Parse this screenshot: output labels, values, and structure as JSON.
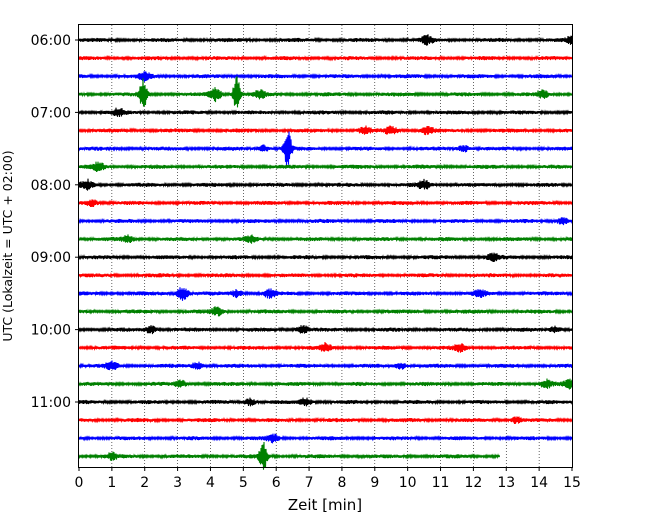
{
  "chart_data": {
    "type": "line",
    "title": "",
    "xlabel": "Zeit  [min]",
    "ylabel": "UTC (Lokalzeit = UTC + 02:00)",
    "xlim": [
      0,
      15
    ],
    "x_ticks": [
      "0",
      "1",
      "2",
      "3",
      "4",
      "5",
      "6",
      "7",
      "8",
      "9",
      "10",
      "11",
      "12",
      "13",
      "14",
      "15"
    ],
    "y_tick_labels": [
      "06:00",
      "07:00",
      "08:00",
      "09:00",
      "10:00",
      "11:00"
    ],
    "y_tick_trace_index": [
      0,
      4,
      8,
      12,
      16,
      20
    ],
    "grid": "vertical dotted at every minute",
    "row_minutes": 15,
    "color_cycle": [
      "#000000",
      "#ff0000",
      "#0000ff",
      "#008000"
    ],
    "traces": [
      {
        "start": "06:00",
        "color": "#000000",
        "end_min": 15,
        "events": [
          [
            10.6,
            1.8
          ],
          [
            15,
            1.6
          ]
        ]
      },
      {
        "start": "06:15",
        "color": "#ff0000",
        "end_min": 15,
        "events": []
      },
      {
        "start": "06:30",
        "color": "#0000ff",
        "end_min": 15,
        "events": [
          [
            2.0,
            1.6
          ]
        ]
      },
      {
        "start": "06:45",
        "color": "#008000",
        "end_min": 15,
        "events": [
          [
            1.95,
            4.5
          ],
          [
            4.8,
            5.5
          ],
          [
            4.15,
            3.0
          ],
          [
            5.5,
            1.6
          ],
          [
            14.1,
            1.6
          ]
        ]
      },
      {
        "start": "07:00",
        "color": "#000000",
        "end_min": 15,
        "events": [
          [
            1.2,
            1.5
          ]
        ]
      },
      {
        "start": "07:15",
        "color": "#ff0000",
        "end_min": 15,
        "events": [
          [
            9.5,
            2.0
          ],
          [
            10.6,
            1.7
          ],
          [
            8.7,
            1.5
          ]
        ]
      },
      {
        "start": "07:30",
        "color": "#0000ff",
        "end_min": 15,
        "events": [
          [
            6.35,
            5.5
          ],
          [
            5.6,
            1.6
          ],
          [
            11.7,
            1.5
          ]
        ]
      },
      {
        "start": "07:45",
        "color": "#008000",
        "end_min": 15,
        "events": [
          [
            0.6,
            1.8
          ]
        ]
      },
      {
        "start": "08:00",
        "color": "#000000",
        "end_min": 15,
        "events": [
          [
            0.25,
            2.0
          ],
          [
            10.5,
            2.0
          ]
        ]
      },
      {
        "start": "08:15",
        "color": "#ff0000",
        "end_min": 15,
        "events": [
          [
            0.4,
            1.5
          ]
        ]
      },
      {
        "start": "08:30",
        "color": "#0000ff",
        "end_min": 15,
        "events": [
          [
            14.7,
            1.5
          ]
        ]
      },
      {
        "start": "08:45",
        "color": "#008000",
        "end_min": 15,
        "events": [
          [
            1.5,
            1.5
          ],
          [
            5.2,
            1.4
          ]
        ]
      },
      {
        "start": "09:00",
        "color": "#000000",
        "end_min": 15,
        "events": [
          [
            12.6,
            1.6
          ]
        ]
      },
      {
        "start": "09:15",
        "color": "#ff0000",
        "end_min": 15,
        "events": []
      },
      {
        "start": "09:30",
        "color": "#0000ff",
        "end_min": 15,
        "events": [
          [
            3.15,
            3.0
          ],
          [
            4.8,
            1.7
          ],
          [
            5.8,
            1.8
          ],
          [
            12.2,
            1.4
          ]
        ]
      },
      {
        "start": "09:45",
        "color": "#008000",
        "end_min": 15,
        "events": [
          [
            4.2,
            1.8
          ]
        ]
      },
      {
        "start": "10:00",
        "color": "#000000",
        "end_min": 15,
        "events": [
          [
            2.2,
            1.7
          ],
          [
            6.8,
            1.8
          ],
          [
            14.5,
            1.5
          ]
        ]
      },
      {
        "start": "10:15",
        "color": "#ff0000",
        "end_min": 15,
        "events": [
          [
            7.5,
            1.8
          ],
          [
            11.6,
            1.5
          ]
        ]
      },
      {
        "start": "10:30",
        "color": "#0000ff",
        "end_min": 15,
        "events": [
          [
            1.0,
            1.7
          ],
          [
            3.6,
            1.6
          ],
          [
            9.8,
            1.4
          ]
        ]
      },
      {
        "start": "10:45",
        "color": "#008000",
        "end_min": 15,
        "events": [
          [
            3.1,
            1.6
          ],
          [
            14.2,
            1.8
          ],
          [
            14.95,
            2.0
          ]
        ]
      },
      {
        "start": "11:00",
        "color": "#000000",
        "end_min": 15,
        "events": [
          [
            5.2,
            1.7
          ],
          [
            6.9,
            1.8
          ]
        ]
      },
      {
        "start": "11:15",
        "color": "#ff0000",
        "end_min": 15,
        "events": [
          [
            13.3,
            1.4
          ]
        ]
      },
      {
        "start": "11:30",
        "color": "#0000ff",
        "end_min": 15,
        "events": [
          [
            5.9,
            1.6
          ]
        ]
      },
      {
        "start": "11:45",
        "color": "#008000",
        "end_min": 12.8,
        "events": [
          [
            5.6,
            5.0
          ],
          [
            1.0,
            1.2
          ]
        ]
      }
    ]
  }
}
